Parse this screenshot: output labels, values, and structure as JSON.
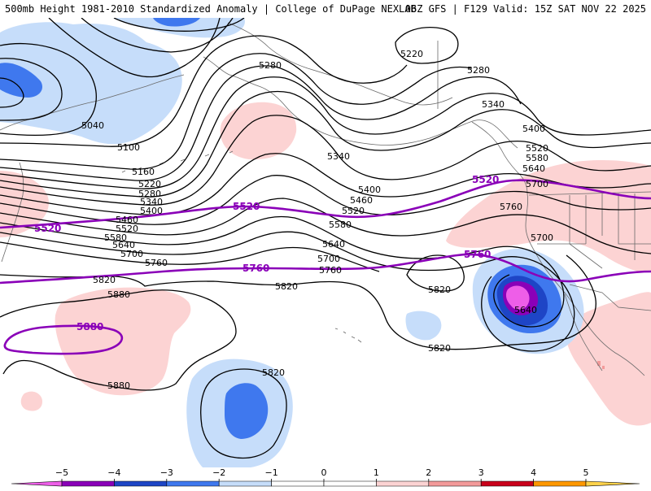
{
  "header": {
    "left": "500mb Height 1981-2010 Standardized Anomaly | College of DuPage NEXLAB",
    "right": "06Z GFS | F129 Valid: 15Z SAT NOV 22 2025"
  },
  "colors": {
    "pos1": "#fcd3d3",
    "neg1": "#c6ddfa",
    "neg2": "#3f78ee",
    "neg3": "#1e45c6",
    "neg4": "#8a00b8",
    "neg5": "#ee5ee8",
    "highlight_contour": "#8a00b8"
  },
  "contours": {
    "l5040": "5040",
    "l5100": "5100",
    "l5160": "5160",
    "l5220": "5220",
    "l5220b": "5220",
    "l5280": "5280",
    "l5280b": "5280",
    "l5280c": "5280",
    "l5340": "5340",
    "l5340b": "5340",
    "l5340c": "5340",
    "l5400": "5400",
    "l5400b": "5400",
    "l5400c": "5400",
    "l5460": "5460",
    "l5460b": "5460",
    "l5520": "5520",
    "l5520b": "5520",
    "l5520c": "5520",
    "l5580": "5580",
    "l5580b": "5580",
    "l5580c": "5580",
    "l5640": "5640",
    "l5640b": "5640",
    "l5640c": "5640",
    "l5640d": "5640",
    "l5700": "5700",
    "l5700b": "5700",
    "l5700c": "5700",
    "l5700d": "5700",
    "l5760": "5760",
    "l5760b": "5760",
    "l5760c": "5760",
    "l5820": "5820",
    "l5820b": "5820",
    "l5820c": "5820",
    "l5820d": "5820",
    "l5820e": "5820",
    "l5880": "5880",
    "l5880b": "5880",
    "p5520a": "5520",
    "p5520b": "5520",
    "p5520c": "5520",
    "p5760a": "5760",
    "p5760b": "5760",
    "p5880": "5880"
  },
  "colorbar": {
    "ticks": [
      "−5",
      "−4",
      "−3",
      "−2",
      "−1",
      "0",
      "1",
      "2",
      "3",
      "4",
      "5"
    ],
    "colors": [
      "#ee5ee8",
      "#8a00b8",
      "#1e45c6",
      "#3f78ee",
      "#c6ddfa",
      "#ffffff",
      "#ffffff",
      "#fcd3d3",
      "#f39a9a",
      "#c9001b",
      "#ff9800",
      "#ffd24a"
    ]
  }
}
